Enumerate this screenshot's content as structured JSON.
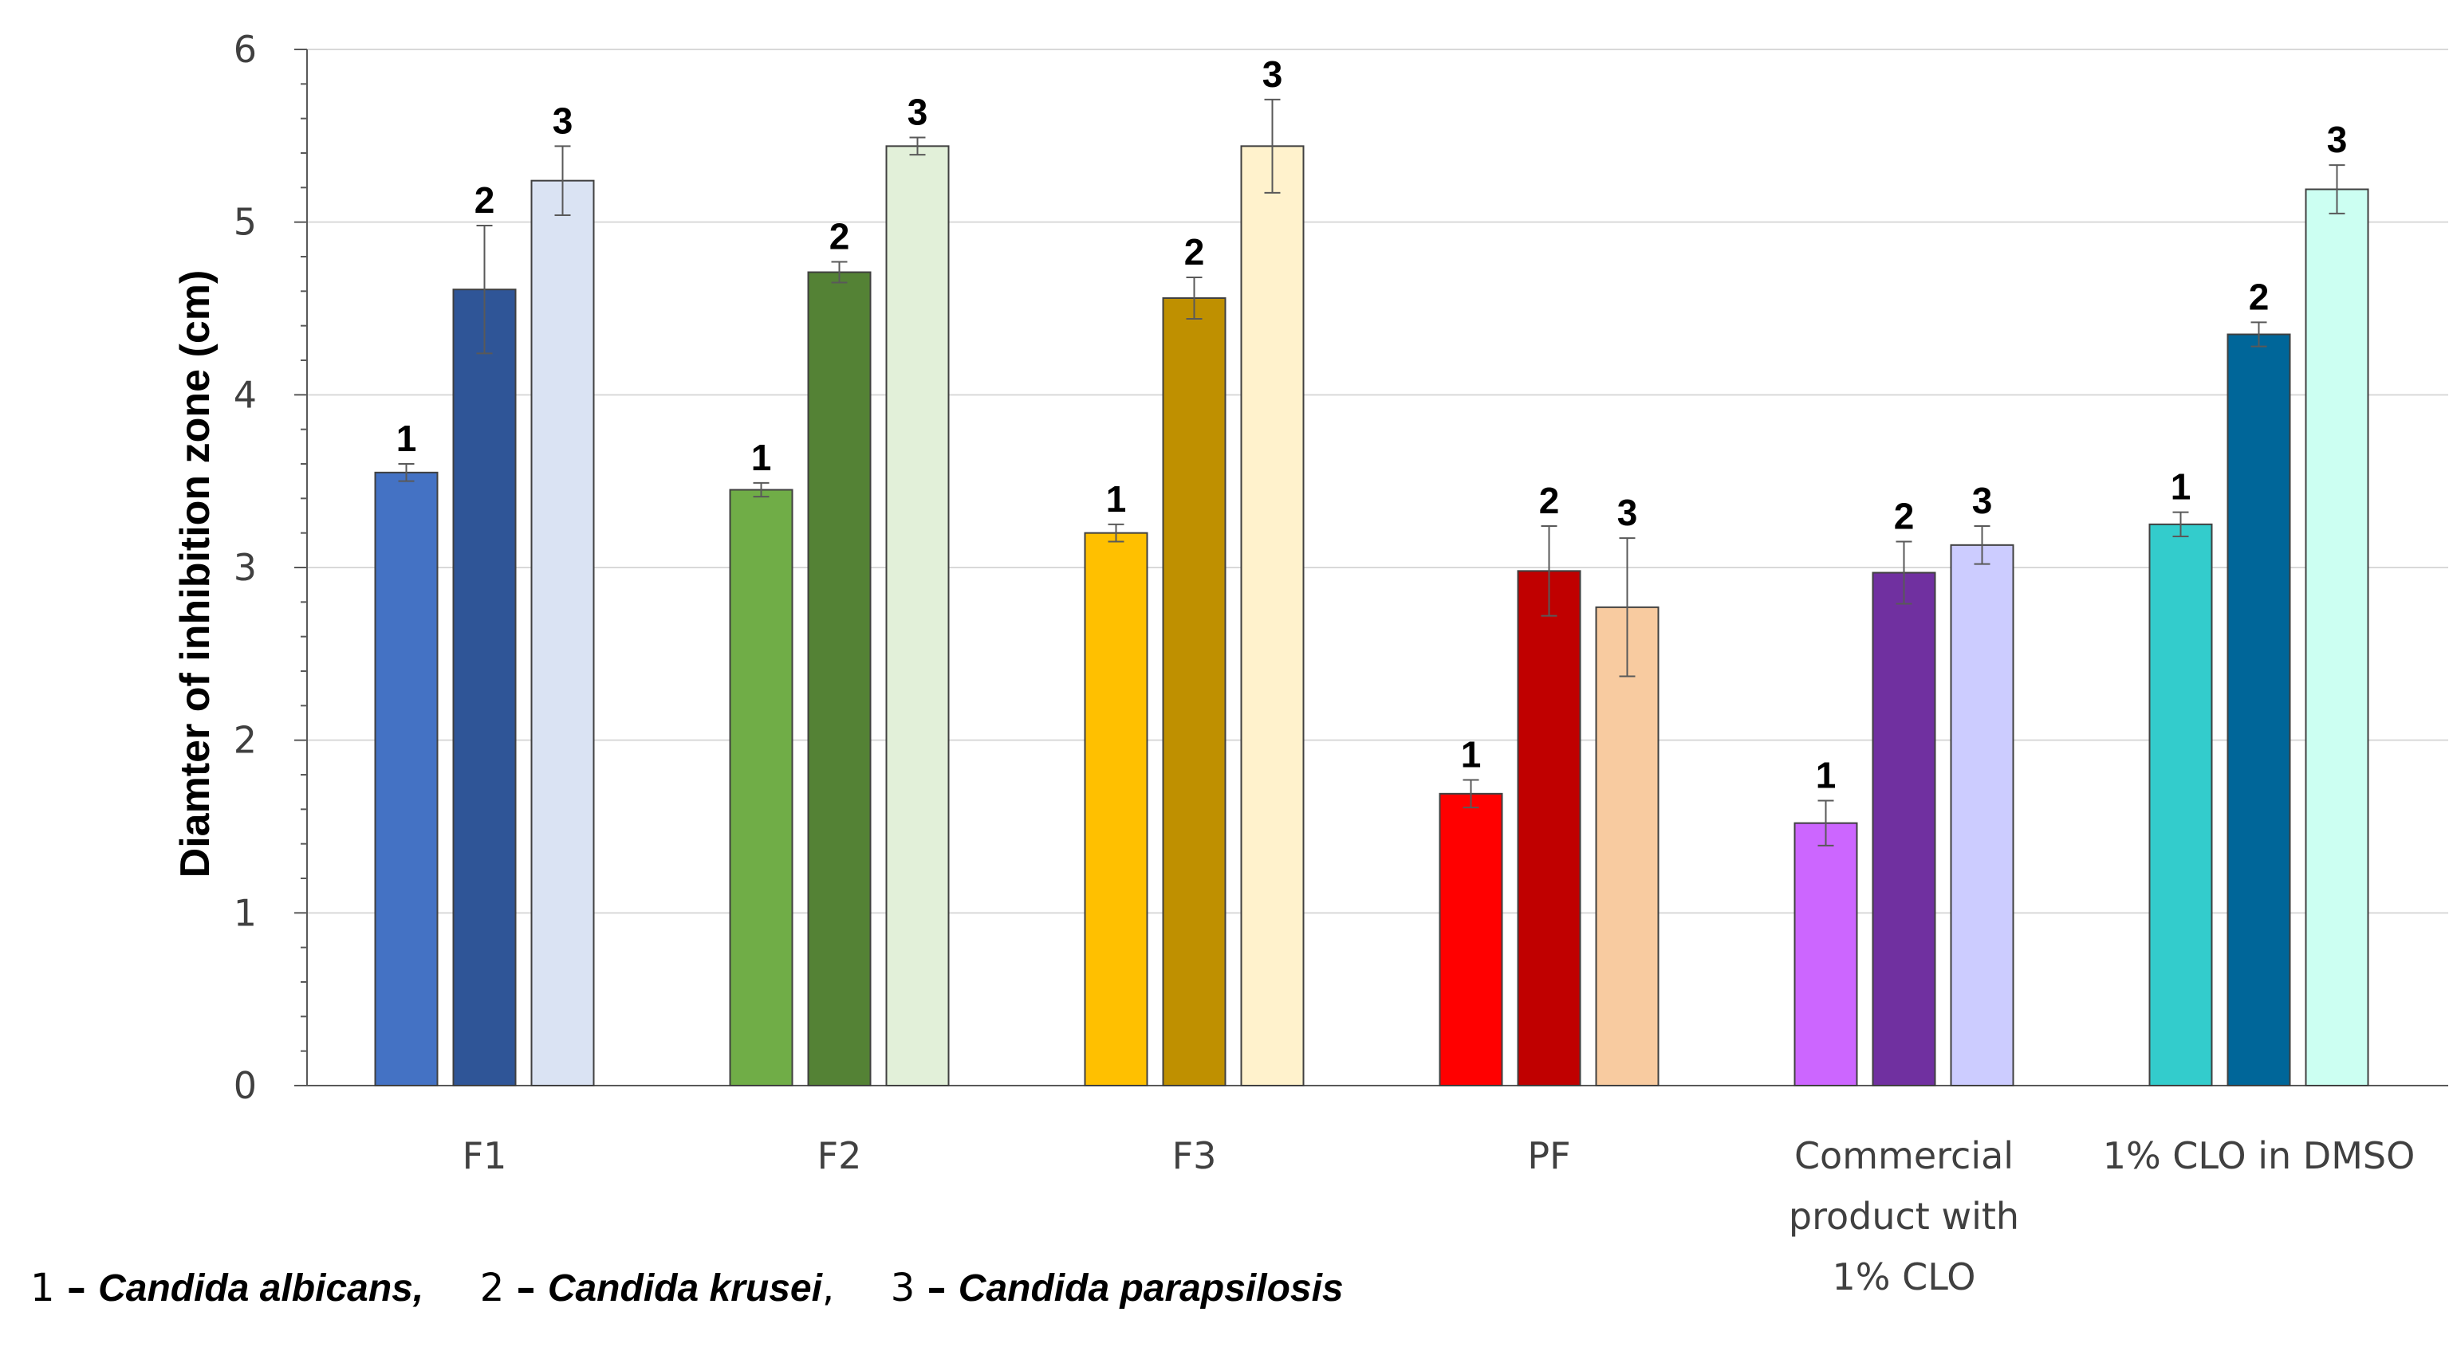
{
  "chart_data": {
    "type": "bar",
    "title": "",
    "ylabel": "Diamter of inhibition zone (cm)",
    "xlabel": "",
    "ylim": [
      0,
      6
    ],
    "yticks": [
      "0",
      "1",
      "2",
      "3",
      "4",
      "5",
      "6"
    ],
    "grid": true,
    "categories": [
      [
        "F1"
      ],
      [
        "F2"
      ],
      [
        "F3"
      ],
      [
        "PF"
      ],
      [
        "Commercial",
        "product with",
        "1% CLO"
      ],
      [
        "1% CLO in DMSO"
      ]
    ],
    "bar_labels": [
      "1",
      "2",
      "3"
    ],
    "values": [
      [
        3.55,
        4.61,
        5.24
      ],
      [
        3.45,
        4.71,
        5.44
      ],
      [
        3.2,
        4.56,
        5.44
      ],
      [
        1.69,
        2.98,
        2.77
      ],
      [
        1.52,
        2.97,
        3.13
      ],
      [
        3.25,
        4.35,
        5.19
      ]
    ],
    "errors": [
      [
        0.05,
        0.37,
        0.2
      ],
      [
        0.04,
        0.06,
        0.05
      ],
      [
        0.05,
        0.12,
        0.27
      ],
      [
        0.08,
        0.26,
        0.4
      ],
      [
        0.13,
        0.18,
        0.11
      ],
      [
        0.07,
        0.07,
        0.14
      ]
    ],
    "colors": [
      [
        "#4472c4",
        "#2f5597",
        "#dae3f3"
      ],
      [
        "#70ad47",
        "#548235",
        "#e2f0d9"
      ],
      [
        "#ffc000",
        "#bf9000",
        "#fff2cc"
      ],
      [
        "#ff0000",
        "#c00000",
        "#f8cba0"
      ],
      [
        "#cc66ff",
        "#7030a0",
        "#ccccff"
      ],
      [
        "#33cccc",
        "#006699",
        "#ccfff2"
      ]
    ]
  },
  "legend": {
    "items": [
      {
        "num": "1",
        "dash": "–",
        "name": "Candida albicans,"
      },
      {
        "num": "2",
        "dash": "–",
        "name": "Candida krusei"
      },
      {
        "num": "3",
        "dash": "–",
        "name": "Candida parapsilosis"
      }
    ],
    "separator": ","
  }
}
